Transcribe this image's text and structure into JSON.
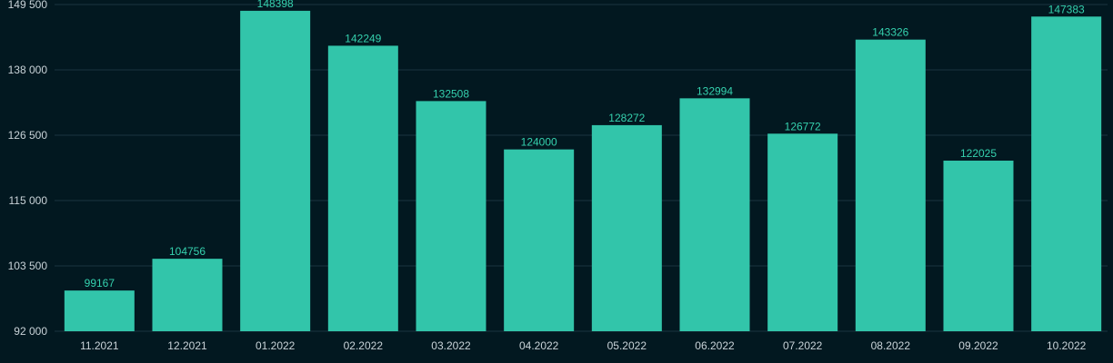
{
  "chart_data": {
    "type": "bar",
    "title": "",
    "xlabel": "",
    "ylabel": "",
    "categories": [
      "11.2021",
      "12.2021",
      "01.2022",
      "02.2022",
      "03.2022",
      "04.2022",
      "05.2022",
      "06.2022",
      "07.2022",
      "08.2022",
      "09.2022",
      "10.2022"
    ],
    "values": [
      99167,
      104756,
      148398,
      142249,
      132508,
      124000,
      128272,
      132994,
      126772,
      143326,
      122025,
      147383
    ],
    "data_labels": [
      "99167",
      "104756",
      "148398",
      "142249",
      "132508",
      "124000",
      "128272",
      "132994",
      "126772",
      "143326",
      "122025",
      "147383"
    ],
    "ylim": [
      92000,
      149500
    ],
    "y_ticks": [
      92000,
      103500,
      115000,
      126500,
      138000,
      149500
    ],
    "y_tick_labels": [
      "92 000",
      "103 500",
      "115 000",
      "126 500",
      "138 000",
      "149 500"
    ],
    "grid": true,
    "legend": "none",
    "colors": {
      "background": "#021820",
      "bar": "#32c5aa",
      "data_label": "#35d1ae",
      "grid": "#1b3540",
      "axis_text": "#c9d3d8"
    }
  }
}
